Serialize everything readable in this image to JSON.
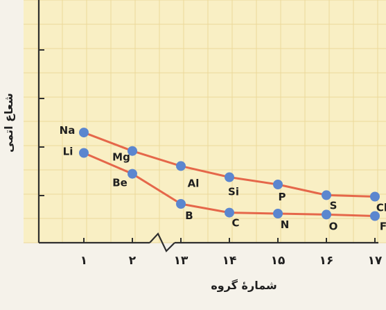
{
  "chart_data": {
    "type": "line",
    "xlabel": "شمارهٔ گروه",
    "ylabel": "شعاع اتمی",
    "x_ticks": [
      "۱",
      "۲",
      "۱۳",
      "۱۴",
      "۱۵",
      "۱۶",
      "۱۷"
    ],
    "axis_break": "between ۲ and ۱۳",
    "ylim": [
      0,
      5
    ],
    "grid": true,
    "colors": {
      "background": "#f9efc4",
      "grid": "#ecd89a",
      "axis": "#2f2f2f",
      "line": "#e5674a",
      "marker": "#5b86cf",
      "text": "#1f1f1f"
    },
    "series": [
      {
        "values": [
          2.27,
          1.89,
          1.58,
          1.35,
          1.2,
          0.98,
          0.95
        ],
        "point_labels": [
          "Na",
          "Mg",
          "Al",
          "Si",
          "P",
          "S",
          "Cl"
        ]
      },
      {
        "values": [
          1.85,
          1.42,
          0.8,
          0.62,
          0.6,
          0.58,
          0.55
        ],
        "point_labels": [
          "Li",
          "Be",
          "B",
          "C",
          "N",
          "O",
          "F"
        ]
      }
    ]
  }
}
